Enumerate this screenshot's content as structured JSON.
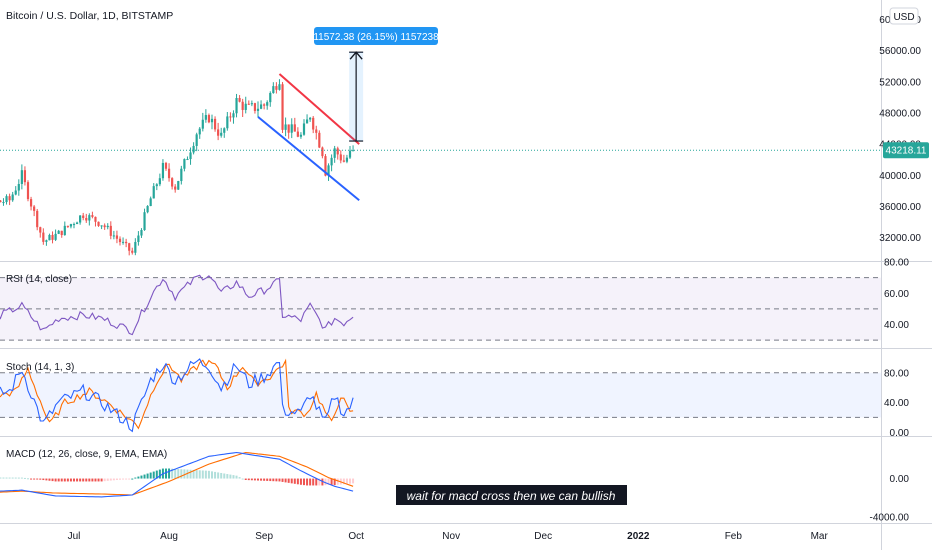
{
  "header": {
    "title": "Bitcoin / U.S. Dollar, 1D, BITSTAMP",
    "currency": "USD"
  },
  "measure": {
    "label": "11572.38 (26.15%) 1157238",
    "from_price": 44400,
    "to_price": 55800
  },
  "price_badge": {
    "value": "43218.11"
  },
  "annotation": {
    "text": "wait for macd cross then we can bullish"
  },
  "colors": {
    "up": "#26a69a",
    "down": "#ef5350",
    "resistance_line": "#f23645",
    "support_line": "#2962ff",
    "measure": "#2196f3",
    "price_line": "#26a69a",
    "rsi_line": "#7e57c2",
    "stoch_k": "#2962ff",
    "stoch_d": "#ff6d00",
    "macd_line": "#2962ff",
    "signal_line": "#ff6d00"
  },
  "chart_data": [
    {
      "type": "candlestick",
      "title": "Bitcoin / U.S. Dollar, 1D, BITSTAMP",
      "ylim": [
        29000,
        62500
      ],
      "yticks": [
        "60000.00",
        "56000.00",
        "52000.00",
        "48000.00",
        "44000.00",
        "40000.00",
        "36000.00",
        "32000.00"
      ],
      "ytick_values": [
        60000,
        56000,
        52000,
        48000,
        44000,
        40000,
        36000,
        32000
      ],
      "last_price": 43218.11,
      "xticks": [
        "Jul",
        "Aug",
        "Sep",
        "Oct",
        "Nov",
        "Dec",
        "2022",
        "Feb",
        "Mar"
      ],
      "close_anchors": [
        [
          "2021-05-20",
          34000
        ],
        [
          "2021-05-26",
          39000
        ],
        [
          "2021-05-31",
          37000
        ],
        [
          "2021-06-05",
          36500
        ],
        [
          "2021-06-10",
          36800
        ],
        [
          "2021-06-14",
          40000
        ],
        [
          "2021-06-21",
          31500
        ],
        [
          "2021-06-26",
          32500
        ],
        [
          "2021-07-04",
          35000
        ],
        [
          "2021-07-10",
          33800
        ],
        [
          "2021-07-20",
          30000
        ],
        [
          "2021-07-26",
          37000
        ],
        [
          "2021-07-30",
          41000
        ],
        [
          "2021-08-03",
          38500
        ],
        [
          "2021-08-10",
          45500
        ],
        [
          "2021-08-14",
          47500
        ],
        [
          "2021-08-18",
          45000
        ],
        [
          "2021-08-23",
          49500
        ],
        [
          "2021-08-27",
          48500
        ],
        [
          "2021-09-01",
          49000
        ],
        [
          "2021-09-06",
          52600
        ],
        [
          "2021-09-07",
          46500
        ],
        [
          "2021-09-13",
          45000
        ],
        [
          "2021-09-16",
          47800
        ],
        [
          "2021-09-20",
          43000
        ],
        [
          "2021-09-21",
          40500
        ],
        [
          "2021-09-24",
          43200
        ],
        [
          "2021-09-27",
          41800
        ],
        [
          "2021-09-30",
          43218
        ]
      ],
      "trendlines": [
        {
          "name": "resistance",
          "from": [
            "2021-09-06",
            53000
          ],
          "to": [
            "2021-10-02",
            44000
          ]
        },
        {
          "name": "support",
          "from": [
            "2021-08-30",
            47500
          ],
          "to": [
            "2021-10-02",
            36800
          ]
        }
      ]
    },
    {
      "type": "line",
      "title": "RSI (14, close)",
      "ylim": [
        25,
        80
      ],
      "yticks": [
        "80.00",
        "60.00",
        "40.00"
      ],
      "band": [
        30,
        70
      ],
      "anchors": [
        [
          "2021-05-20",
          40
        ],
        [
          "2021-05-26",
          50
        ],
        [
          "2021-05-31",
          44
        ],
        [
          "2021-06-07",
          46
        ],
        [
          "2021-06-14",
          52
        ],
        [
          "2021-06-21",
          36
        ],
        [
          "2021-06-26",
          44
        ],
        [
          "2021-07-04",
          46
        ],
        [
          "2021-07-10",
          44
        ],
        [
          "2021-07-20",
          36
        ],
        [
          "2021-07-26",
          58
        ],
        [
          "2021-07-30",
          70
        ],
        [
          "2021-08-03",
          58
        ],
        [
          "2021-08-10",
          70
        ],
        [
          "2021-08-14",
          72
        ],
        [
          "2021-08-18",
          60
        ],
        [
          "2021-08-23",
          67
        ],
        [
          "2021-08-27",
          58
        ],
        [
          "2021-09-01",
          62
        ],
        [
          "2021-09-06",
          68
        ],
        [
          "2021-09-07",
          46
        ],
        [
          "2021-09-13",
          43
        ],
        [
          "2021-09-16",
          52
        ],
        [
          "2021-09-20",
          40
        ],
        [
          "2021-09-21",
          37
        ],
        [
          "2021-09-24",
          44
        ],
        [
          "2021-09-27",
          41
        ],
        [
          "2021-09-30",
          46
        ]
      ]
    },
    {
      "type": "line",
      "title": "Stoch (14, 1, 3)",
      "ylim": [
        -5,
        112
      ],
      "yticks": [
        "80.00",
        "40.00",
        "0.00"
      ],
      "band": [
        20,
        80
      ],
      "anchors": [
        [
          "2021-05-20",
          10
        ],
        [
          "2021-05-26",
          70
        ],
        [
          "2021-05-31",
          30
        ],
        [
          "2021-06-05",
          50
        ],
        [
          "2021-06-10",
          55
        ],
        [
          "2021-06-14",
          85
        ],
        [
          "2021-06-21",
          10
        ],
        [
          "2021-06-26",
          40
        ],
        [
          "2021-07-04",
          55
        ],
        [
          "2021-07-10",
          40
        ],
        [
          "2021-07-20",
          8
        ],
        [
          "2021-07-26",
          70
        ],
        [
          "2021-07-30",
          92
        ],
        [
          "2021-08-03",
          70
        ],
        [
          "2021-08-10",
          95
        ],
        [
          "2021-08-14",
          90
        ],
        [
          "2021-08-18",
          60
        ],
        [
          "2021-08-23",
          90
        ],
        [
          "2021-08-27",
          65
        ],
        [
          "2021-09-01",
          75
        ],
        [
          "2021-09-06",
          95
        ],
        [
          "2021-09-07",
          30
        ],
        [
          "2021-09-13",
          25
        ],
        [
          "2021-09-16",
          52
        ],
        [
          "2021-09-20",
          18
        ],
        [
          "2021-09-21",
          12
        ],
        [
          "2021-09-24",
          50
        ],
        [
          "2021-09-27",
          25
        ],
        [
          "2021-09-30",
          40
        ]
      ]
    },
    {
      "type": "line",
      "title": "MACD (12, 26, close, 9, EMA, EMA)",
      "ylim": [
        -4600,
        4300
      ],
      "yticks": [
        "0.00",
        "-4000.00"
      ],
      "series": [
        {
          "name": "MACD",
          "anchors": [
            [
              "2021-05-20",
              -2200
            ],
            [
              "2021-05-31",
              -1400
            ],
            [
              "2021-06-14",
              -1200
            ],
            [
              "2021-06-25",
              -1800
            ],
            [
              "2021-07-10",
              -1900
            ],
            [
              "2021-07-20",
              -1700
            ],
            [
              "2021-07-30",
              500
            ],
            [
              "2021-08-14",
              2300
            ],
            [
              "2021-08-23",
              2700
            ],
            [
              "2021-09-06",
              2000
            ],
            [
              "2021-09-13",
              800
            ],
            [
              "2021-09-20",
              -300
            ],
            [
              "2021-09-24",
              -800
            ],
            [
              "2021-09-30",
              -1300
            ]
          ]
        },
        {
          "name": "Signal",
          "anchors": [
            [
              "2021-05-20",
              -2000
            ],
            [
              "2021-06-01",
              -1500
            ],
            [
              "2021-06-14",
              -1300
            ],
            [
              "2021-06-25",
              -1500
            ],
            [
              "2021-07-10",
              -1600
            ],
            [
              "2021-07-20",
              -1700
            ],
            [
              "2021-08-01",
              -300
            ],
            [
              "2021-08-14",
              1500
            ],
            [
              "2021-08-26",
              2700
            ],
            [
              "2021-09-06",
              2300
            ],
            [
              "2021-09-15",
              1200
            ],
            [
              "2021-09-22",
              100
            ],
            [
              "2021-09-30",
              -800
            ]
          ]
        }
      ]
    }
  ]
}
